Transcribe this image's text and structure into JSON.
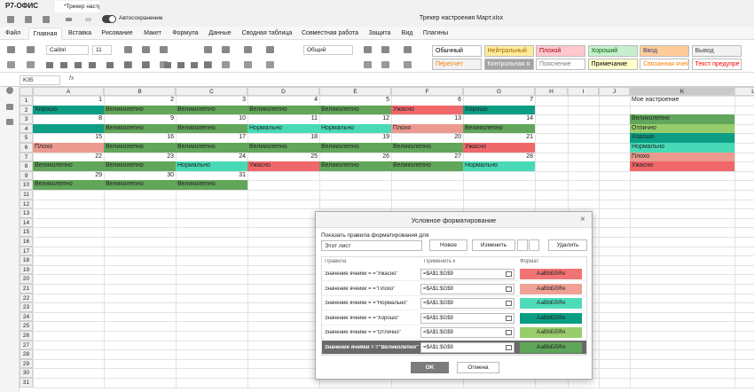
{
  "titlebar": {
    "app": "Р7-ОФИС",
    "tab": "*Трекер настр...",
    "autosave": "Автосохранение",
    "document": "Трекер настроения Март.xlsx"
  },
  "menu": [
    "Файл",
    "Главная",
    "Вставка",
    "Рисование",
    "Макет",
    "Формула",
    "Данные",
    "Сводная таблица",
    "Совместная работа",
    "Защита",
    "Вид",
    "Плагины"
  ],
  "toolbar": {
    "font": "Calibri",
    "size": "11",
    "number_format": "Общий"
  },
  "styles": [
    {
      "label": "Обычный",
      "bg": "#ffffff",
      "color": "#000000"
    },
    {
      "label": "Нейтральный",
      "bg": "#ffeb9c",
      "color": "#9c6500"
    },
    {
      "label": "Плохой",
      "bg": "#ffc7ce",
      "color": "#9c0006"
    },
    {
      "label": "Хороший",
      "bg": "#c6efce",
      "color": "#006100"
    },
    {
      "label": "Ввод",
      "bg": "#ffcc99",
      "color": "#3f3f76"
    },
    {
      "label": "Вывод",
      "bg": "#f2f2f2",
      "color": "#3f3f3f"
    },
    {
      "label": "Пересчет",
      "bg": "#f2f2f2",
      "color": "#fa7d00"
    },
    {
      "label": "Контрольная я",
      "bg": "#a5a5a5",
      "color": "#ffffff"
    },
    {
      "label": "Пояснение",
      "bg": "#ffffff",
      "color": "#7f7f7f"
    },
    {
      "label": "Примечание",
      "bg": "#ffffcc",
      "color": "#000000"
    },
    {
      "label": "Связанная ячей",
      "bg": "#ffffff",
      "color": "#fa7d00"
    },
    {
      "label": "Текст предупре",
      "bg": "#ffffff",
      "color": "#ff0000"
    }
  ],
  "formula_bar": {
    "cell": "K35",
    "fx": "fx"
  },
  "sheet": {
    "columns": [
      "A",
      "B",
      "C",
      "D",
      "E",
      "F",
      "G",
      "H",
      "I",
      "J",
      "K",
      "L"
    ],
    "row_headers": [
      1,
      2,
      3,
      4,
      5,
      6,
      7,
      8,
      9,
      10,
      11,
      12,
      13,
      14,
      15,
      16,
      17,
      18,
      19,
      20,
      21,
      22,
      23,
      24,
      25,
      26,
      27,
      28,
      29,
      30,
      31
    ],
    "cells": [
      [
        1,
        2,
        3,
        4,
        5,
        6,
        7
      ],
      [
        "Хорошо",
        "Великолепно",
        "Великолепно",
        "Великолепно",
        "Великолепно",
        "Ужасно",
        "Хорошо"
      ],
      [
        8,
        9,
        10,
        11,
        12,
        13,
        14
      ],
      [
        null,
        "Великолепно",
        "Великолепно",
        "Нормально",
        "Нормально",
        "Плохо",
        "Великолепно"
      ],
      [
        15,
        16,
        17,
        18,
        19,
        20,
        21
      ],
      [
        "Плохо",
        "Великолепно",
        "Великолепно",
        "Великолепно",
        "Великолепно",
        "Великолепно",
        "Ужасно"
      ],
      [
        22,
        23,
        24,
        25,
        26,
        27,
        28
      ],
      [
        "Великолепно",
        "Великолепно",
        "Нормально",
        "Ужасно",
        "Великолепно",
        "Великолепно",
        "Нормально"
      ],
      [
        29,
        30,
        31,
        null,
        null,
        null,
        null
      ],
      [
        "Великолепно",
        "Великолепно",
        "Великолепно",
        null,
        null,
        null,
        null
      ]
    ],
    "fills": [
      [
        null,
        null,
        null,
        null,
        null,
        null,
        null
      ],
      [
        "#0c9e85",
        "#61a65a",
        "#61a65a",
        "#61a65a",
        "#61a65a",
        "#f0676a",
        "#0c9e85"
      ],
      [
        null,
        null,
        null,
        null,
        null,
        null,
        null
      ],
      [
        "#0c9e85",
        "#61a65a",
        "#61a65a",
        "#48dab7",
        "#48dab7",
        "#ec9a90",
        "#61a65a"
      ],
      [
        null,
        null,
        null,
        null,
        null,
        null,
        null
      ],
      [
        "#ec9a90",
        "#61a65a",
        "#61a65a",
        "#61a65a",
        "#61a65a",
        "#61a65a",
        "#f0676a"
      ],
      [
        null,
        null,
        null,
        null,
        null,
        null,
        null
      ],
      [
        "#61a65a",
        "#61a65a",
        "#48dab7",
        "#f0676a",
        "#61a65a",
        "#61a65a",
        "#48dab7"
      ],
      [
        null,
        null,
        null,
        null,
        null,
        null,
        null
      ],
      [
        "#61a65a",
        "#61a65a",
        "#61a65a",
        null,
        null,
        null,
        null
      ]
    ],
    "legend": {
      "title": "Мое настроение",
      "items": [
        {
          "text": "Великолепно",
          "fill": "#61a65a"
        },
        {
          "text": "Отлично",
          "fill": "#96cd6a"
        },
        {
          "text": "Хорошо",
          "fill": "#0c9e85"
        },
        {
          "text": "Нормально",
          "fill": "#48dab7"
        },
        {
          "text": "Плохо",
          "fill": "#ec9a90"
        },
        {
          "text": "Ужасно",
          "fill": "#f0676a"
        }
      ]
    }
  },
  "dialog": {
    "title": "Условное форматирование",
    "show_label": "Показать правила форматирования для",
    "scope": "Этот лист",
    "buttons": {
      "new": "Новое",
      "edit": "Изменить",
      "delete": "Удалить",
      "ok": "OK",
      "cancel": "Отмена"
    },
    "headers": [
      "Правила",
      "Применить к",
      "Формат"
    ],
    "rules": [
      {
        "text": "Значение ячейки = =\"Ужасно\"",
        "range": "=$A$1:$G$9",
        "sample": "АаВbБбЯя",
        "fill": "#f27374"
      },
      {
        "text": "Значение ячейки = =\"Плохо\"",
        "range": "=$A$1:$G$9",
        "sample": "АаВbБбЯя",
        "fill": "#f0a095"
      },
      {
        "text": "Значение ячейки = =\"Нормально\"",
        "range": "=$A$1:$G$9",
        "sample": "АаВbБбЯя",
        "fill": "#4edbb9"
      },
      {
        "text": "Значение ячейки = =\"Хорошо\"",
        "range": "=$A$1:$G$9",
        "sample": "АаВbБбЯя",
        "fill": "#099d84"
      },
      {
        "text": "Значение ячейки = =\"Отлично\"",
        "range": "=$A$1:$G$9",
        "sample": "АаВbБбЯя",
        "fill": "#99cc6b"
      },
      {
        "text": "Значение ячейки = =\"Великолепно\"",
        "range": "=$A$1:$G$9",
        "sample": "АаВbБбЯя",
        "fill": "#5fa65a"
      }
    ],
    "selected_rule": 5
  }
}
